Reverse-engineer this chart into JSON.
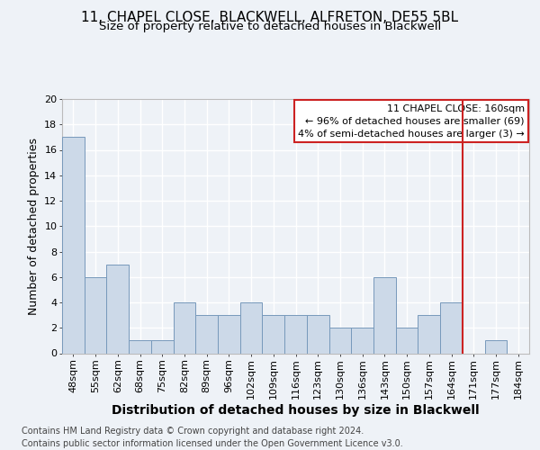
{
  "title": "11, CHAPEL CLOSE, BLACKWELL, ALFRETON, DE55 5BL",
  "subtitle": "Size of property relative to detached houses in Blackwell",
  "xlabel": "Distribution of detached houses by size in Blackwell",
  "ylabel": "Number of detached properties",
  "footer": "Contains HM Land Registry data © Crown copyright and database right 2024.\nContains public sector information licensed under the Open Government Licence v3.0.",
  "bin_labels": [
    "48sqm",
    "55sqm",
    "62sqm",
    "68sqm",
    "75sqm",
    "82sqm",
    "89sqm",
    "96sqm",
    "102sqm",
    "109sqm",
    "116sqm",
    "123sqm",
    "130sqm",
    "136sqm",
    "143sqm",
    "150sqm",
    "157sqm",
    "164sqm",
    "171sqm",
    "177sqm",
    "184sqm"
  ],
  "bar_values": [
    17,
    6,
    7,
    1,
    1,
    4,
    3,
    3,
    4,
    3,
    3,
    3,
    2,
    2,
    6,
    2,
    3,
    4,
    0,
    1,
    0
  ],
  "bar_color": "#ccd9e8",
  "bar_edge_color": "#7799bb",
  "vline_x_index": 17,
  "vline_color": "#cc2222",
  "annotation_title": "11 CHAPEL CLOSE: 160sqm",
  "annotation_line1": "← 96% of detached houses are smaller (69)",
  "annotation_line2": "4% of semi-detached houses are larger (3) →",
  "annotation_box_color": "#cc2222",
  "ylim": [
    0,
    20
  ],
  "yticks": [
    0,
    2,
    4,
    6,
    8,
    10,
    12,
    14,
    16,
    18,
    20
  ],
  "background_color": "#eef2f7",
  "plot_bg_color": "#eef2f7",
  "grid_color": "#ffffff",
  "title_fontsize": 11,
  "subtitle_fontsize": 9.5,
  "xlabel_fontsize": 10,
  "ylabel_fontsize": 9,
  "tick_fontsize": 8,
  "annot_fontsize": 8,
  "footer_fontsize": 7
}
